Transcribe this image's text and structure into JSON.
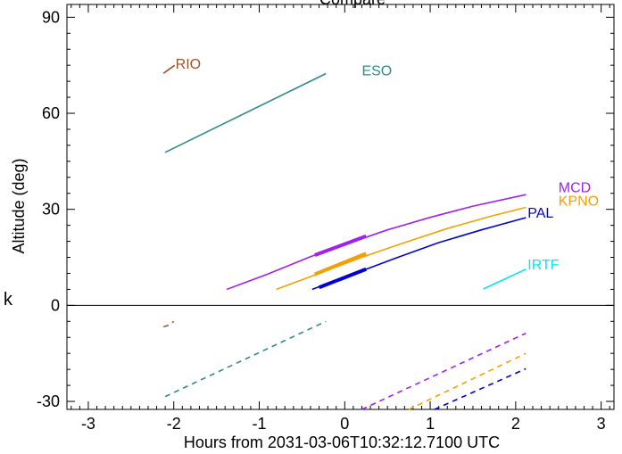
{
  "chart_data": {
    "type": "line",
    "title": "Compare",
    "xlabel": "Hours from 2031-03-06T10:32:12.7100 UTC",
    "ylabel": "Altitude (deg)",
    "side_label": "k",
    "xlim": [
      -3.25,
      3.15
    ],
    "ylim": [
      -32.5,
      94
    ],
    "xticks": [
      "-3",
      "-2",
      "-1",
      "0",
      "1",
      "2",
      "3"
    ],
    "xtick_values": [
      -3,
      -2,
      -1,
      0,
      1,
      2,
      3
    ],
    "yticks": [
      "-30",
      "0",
      "30",
      "60",
      "90"
    ],
    "ytick_values": [
      -30,
      0,
      30,
      60,
      90
    ],
    "reference_line_y": 0,
    "series": [
      {
        "name": "RIO",
        "color": "#a0522d",
        "solid": [
          [
            -2.12,
            72.5
          ],
          [
            -1.99,
            75.0
          ]
        ],
        "thick": [],
        "dashed": [
          [
            -2.12,
            -6.7
          ],
          [
            -2.06,
            -6.2
          ],
          [
            -2.0,
            -5.0
          ]
        ]
      },
      {
        "name": "ESO",
        "color": "#2e8b8b",
        "solid": [
          [
            -2.1,
            47.8
          ],
          [
            -0.22,
            72.4
          ]
        ],
        "thick": [],
        "dashed": [
          [
            -2.1,
            -28.5
          ],
          [
            -0.22,
            -5.0
          ]
        ]
      },
      {
        "name": "MCD",
        "color": "#a020f0",
        "solid": [
          [
            -1.38,
            5.0
          ],
          [
            -0.9,
            9.8
          ],
          [
            -0.4,
            15.2
          ],
          [
            0.0,
            19.0
          ],
          [
            0.5,
            23.6
          ],
          [
            1.0,
            27.5
          ],
          [
            1.5,
            31.0
          ],
          [
            2.12,
            34.6
          ]
        ],
        "thick": [
          [
            -0.35,
            15.7
          ],
          [
            0.25,
            21.6
          ]
        ],
        "dashed": [
          [
            0.2,
            -32.5
          ],
          [
            2.12,
            -8.7
          ]
        ]
      },
      {
        "name": "KPNO",
        "color": "#f5a000",
        "solid": [
          [
            -0.8,
            5.0
          ],
          [
            -0.3,
            10.0
          ],
          [
            0.2,
            15.0
          ],
          [
            0.7,
            19.6
          ],
          [
            1.2,
            24.0
          ],
          [
            1.7,
            27.8
          ],
          [
            2.12,
            30.6
          ]
        ],
        "thick": [
          [
            -0.35,
            9.7
          ],
          [
            0.25,
            16.2
          ]
        ],
        "dashed": [
          [
            0.75,
            -32.5
          ],
          [
            2.12,
            -15.0
          ]
        ]
      },
      {
        "name": "PAL",
        "color": "#0000dd",
        "solid": [
          [
            -0.38,
            5.0
          ],
          [
            0.1,
            9.8
          ],
          [
            0.6,
            14.8
          ],
          [
            1.1,
            19.6
          ],
          [
            1.6,
            23.6
          ],
          [
            2.12,
            27.4
          ]
        ],
        "thick": [
          [
            -0.3,
            5.6
          ],
          [
            0.25,
            11.3
          ]
        ],
        "dashed": [
          [
            1.05,
            -32.5
          ],
          [
            2.12,
            -19.8
          ]
        ]
      },
      {
        "name": "IRTF",
        "color": "#00e5ee",
        "solid": [
          [
            1.62,
            5.1
          ],
          [
            2.12,
            11.3
          ]
        ],
        "thick": [],
        "dashed": []
      }
    ],
    "labels": [
      {
        "series": "RIO",
        "text": "RIO",
        "x": -1.98,
        "y": 74.5
      },
      {
        "series": "ESO",
        "text": "ESO",
        "x": 0.2,
        "y": 72.4
      },
      {
        "series": "MCD",
        "text": "MCD",
        "x": 2.5,
        "y": 35.9
      },
      {
        "series": "KPNO",
        "text": "KPNO",
        "x": 2.5,
        "y": 31.7
      },
      {
        "series": "PAL",
        "text": "PAL",
        "x": 2.14,
        "y": 27.9
      },
      {
        "series": "IRTF",
        "text": "IRTF",
        "x": 2.14,
        "y": 11.8
      }
    ],
    "grid": false,
    "legend": "none"
  }
}
